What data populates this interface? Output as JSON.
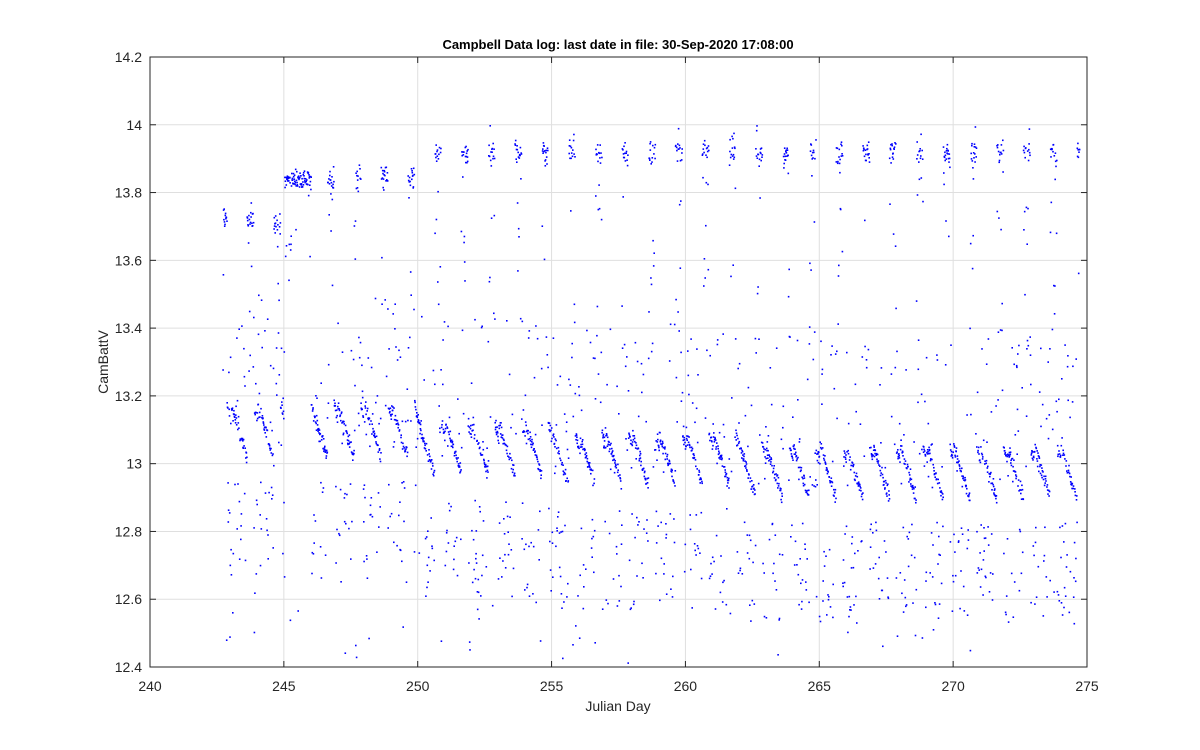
{
  "chart_data": {
    "type": "scatter",
    "title": "Campbell Data log: last date in file: 30-Sep-2020 17:08:00",
    "xlabel": "Julian Day",
    "ylabel": "CamBattV",
    "xlim": [
      240,
      275
    ],
    "ylim": [
      12.4,
      14.2
    ],
    "xticks": [
      240,
      245,
      250,
      255,
      260,
      265,
      270,
      275
    ],
    "yticks": [
      12.4,
      12.6,
      12.8,
      13,
      13.2,
      13.4,
      13.6,
      13.8,
      14,
      14.2
    ],
    "xtick_labels": [
      "240",
      "245",
      "250",
      "255",
      "260",
      "265",
      "270",
      "275"
    ],
    "ytick_labels": [
      "12.4",
      "12.6",
      "12.8",
      "13",
      "13.2",
      "13.4",
      "13.6",
      "13.8",
      "14",
      "14.2"
    ],
    "grid": true,
    "marker_color": "#0000ff",
    "series": [
      {
        "x_start": 242.7,
        "x_end": 274.7,
        "sample_interval_days": 0.0069,
        "daily_pattern": [
          {
            "from_day": 242.7,
            "to_day": 245.0,
            "night_level": 13.05,
            "day_peak": 13.8
          },
          {
            "from_day": 245.0,
            "to_day": 246.0,
            "night_level": 13.84,
            "day_peak": 13.88
          },
          {
            "from_day": 246.0,
            "to_day": 250.0,
            "night_level": 13.05,
            "day_peak": 13.92
          },
          {
            "from_day": 250.0,
            "to_day": 255.0,
            "night_level": 13.0,
            "day_peak": 14.0
          },
          {
            "from_day": 255.0,
            "to_day": 262.0,
            "night_level": 12.97,
            "day_peak": 14.0
          },
          {
            "from_day": 262.0,
            "to_day": 274.7,
            "night_level": 12.93,
            "day_peak": 14.0
          }
        ],
        "min_value": 12.41,
        "max_value": 14.03
      }
    ]
  }
}
